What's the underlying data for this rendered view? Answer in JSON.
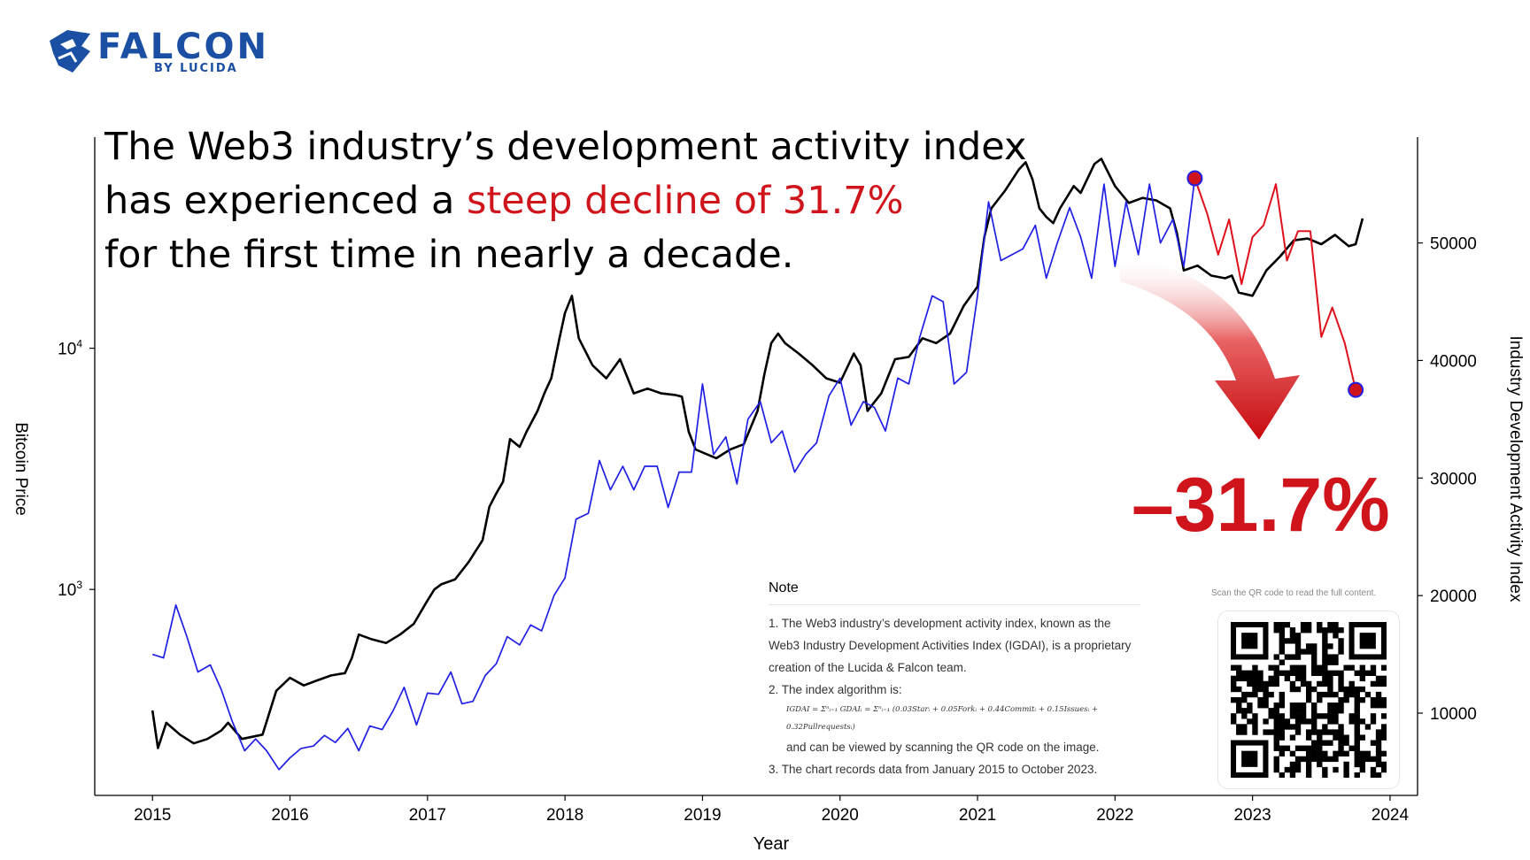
{
  "brand": {
    "name": "FALCON",
    "sub": "BY LUCIDA"
  },
  "headline": {
    "line1": "The Web3 industry’s development activity index",
    "line2_pre": "has experienced a ",
    "line2_red": "steep decline of 31.7%",
    "line3": "for the first time in nearly a decade."
  },
  "decline_label": "–31.7%",
  "note": {
    "title": "Note",
    "item1": "1. The Web3 industry’s development activity index, known as the Web3 Industry Development Activities Index (IGDAI), is a proprietary creation of the Lucida & Falcon team.",
    "item2": "2. The index algorithm is:",
    "formula": "IGDAI = Σⁿᵢ₌₁ GDAIᵢ = Σⁿᵢ₌₁ (0.03Starᵢ + 0.05Forkᵢ + 0.44Commitᵢ + 0.15Issuesᵢ + 0.32Pullrequestsᵢ)",
    "item2b": "and can be viewed by scanning the QR code on the image.",
    "item3": "3. The chart records data from January 2015 to October 2023."
  },
  "qr_caption": "Scan the QR code to read the full content.",
  "colors": {
    "price": "#000000",
    "index": "#1f1fe6",
    "decline": "#e0101c",
    "accent": "#d0141b",
    "brand": "#1a4fa3"
  },
  "chart_data": {
    "type": "line",
    "xlabel": "Year",
    "ylabel_left": "Bitcoin Price",
    "ylabel_right": "Industry Development Activity Index",
    "x_ticks": [
      2015,
      2016,
      2017,
      2018,
      2019,
      2020,
      2021,
      2022,
      2023,
      2024
    ],
    "xlim": [
      2014.58,
      2024.2
    ],
    "y_left_scale": "log",
    "y_left_ticks": [
      "10^3",
      "10^4"
    ],
    "ylim_left": [
      140,
      75000
    ],
    "y_right_ticks": [
      10000,
      20000,
      30000,
      40000,
      50000
    ],
    "ylim_right": [
      3000,
      59000
    ],
    "grid": false,
    "series": [
      {
        "name": "Bitcoin Price",
        "axis": "left",
        "x": [
          2015.0,
          2015.04,
          2015.1,
          2015.2,
          2015.3,
          2015.4,
          2015.5,
          2015.55,
          2015.65,
          2015.8,
          2015.9,
          2016.0,
          2016.1,
          2016.2,
          2016.3,
          2016.4,
          2016.45,
          2016.5,
          2016.6,
          2016.7,
          2016.8,
          2016.9,
          2017.0,
          2017.05,
          2017.1,
          2017.2,
          2017.3,
          2017.4,
          2017.45,
          2017.5,
          2017.55,
          2017.6,
          2017.67,
          2017.72,
          2017.8,
          2017.85,
          2017.9,
          2017.96,
          2018.0,
          2018.05,
          2018.1,
          2018.2,
          2018.3,
          2018.4,
          2018.5,
          2018.6,
          2018.7,
          2018.8,
          2018.85,
          2018.9,
          2018.95,
          2019.0,
          2019.1,
          2019.2,
          2019.3,
          2019.4,
          2019.45,
          2019.5,
          2019.55,
          2019.6,
          2019.7,
          2019.8,
          2019.9,
          2020.0,
          2020.1,
          2020.15,
          2020.2,
          2020.3,
          2020.4,
          2020.5,
          2020.6,
          2020.7,
          2020.8,
          2020.9,
          2021.0,
          2021.05,
          2021.1,
          2021.2,
          2021.3,
          2021.35,
          2021.4,
          2021.45,
          2021.5,
          2021.55,
          2021.6,
          2021.7,
          2021.75,
          2021.85,
          2021.9,
          2022.0,
          2022.1,
          2022.2,
          2022.3,
          2022.4,
          2022.45,
          2022.5,
          2022.6,
          2022.7,
          2022.8,
          2022.85,
          2022.9,
          2023.0,
          2023.1,
          2023.2,
          2023.3,
          2023.4,
          2023.5,
          2023.6,
          2023.7,
          2023.75,
          2023.8
        ],
        "y": [
          315,
          220,
          280,
          250,
          230,
          240,
          260,
          280,
          240,
          250,
          380,
          430,
          400,
          420,
          440,
          450,
          520,
          650,
          620,
          600,
          650,
          720,
          900,
          1000,
          1050,
          1100,
          1300,
          1600,
          2200,
          2500,
          2800,
          4200,
          3900,
          4500,
          5500,
          6500,
          7500,
          11000,
          14000,
          16500,
          11000,
          8500,
          7500,
          9000,
          6500,
          6800,
          6500,
          6400,
          6300,
          4500,
          3800,
          3700,
          3500,
          3800,
          4000,
          5500,
          7800,
          10500,
          11500,
          10500,
          9500,
          8500,
          7500,
          7200,
          9500,
          8500,
          5500,
          6500,
          9000,
          9200,
          11000,
          10500,
          11500,
          15000,
          18000,
          29000,
          38000,
          45000,
          55000,
          59000,
          50000,
          38000,
          35000,
          33000,
          38000,
          47000,
          44000,
          58000,
          61000,
          47000,
          40000,
          42000,
          41000,
          38000,
          30000,
          21000,
          22000,
          20000,
          19500,
          20000,
          17000,
          16500,
          21000,
          24000,
          28000,
          28500,
          27000,
          29500,
          26500,
          27000,
          34500
        ]
      },
      {
        "name": "Industry Development Activity Index",
        "axis": "right",
        "x": [
          2015.0,
          2015.08,
          2015.17,
          2015.25,
          2015.33,
          2015.42,
          2015.5,
          2015.58,
          2015.67,
          2015.75,
          2015.83,
          2015.92,
          2016.0,
          2016.08,
          2016.17,
          2016.25,
          2016.33,
          2016.42,
          2016.5,
          2016.58,
          2016.67,
          2016.75,
          2016.83,
          2016.92,
          2017.0,
          2017.08,
          2017.17,
          2017.25,
          2017.33,
          2017.42,
          2017.5,
          2017.58,
          2017.67,
          2017.75,
          2017.83,
          2017.92,
          2018.0,
          2018.08,
          2018.17,
          2018.25,
          2018.33,
          2018.42,
          2018.5,
          2018.58,
          2018.67,
          2018.75,
          2018.83,
          2018.92,
          2019.0,
          2019.08,
          2019.17,
          2019.25,
          2019.33,
          2019.42,
          2019.5,
          2019.58,
          2019.67,
          2019.75,
          2019.83,
          2019.92,
          2020.0,
          2020.08,
          2020.17,
          2020.25,
          2020.33,
          2020.42,
          2020.5,
          2020.58,
          2020.67,
          2020.75,
          2020.83,
          2020.92,
          2021.0,
          2021.08,
          2021.17,
          2021.25,
          2021.33,
          2021.42,
          2021.5,
          2021.58,
          2021.67,
          2021.75,
          2021.83,
          2021.92,
          2022.0,
          2022.08,
          2022.17,
          2022.25,
          2022.33,
          2022.42,
          2022.5,
          2022.58
        ],
        "y": [
          15000,
          14700,
          19200,
          16500,
          13500,
          14100,
          12000,
          9300,
          6800,
          7800,
          6800,
          5200,
          6200,
          7000,
          7200,
          8100,
          7500,
          8700,
          6800,
          8900,
          8600,
          10200,
          12200,
          9000,
          11700,
          11600,
          13500,
          10800,
          11000,
          13200,
          14200,
          16500,
          15800,
          17500,
          17000,
          20000,
          21500,
          26500,
          27000,
          31500,
          29000,
          31000,
          29000,
          31000,
          31000,
          27500,
          30500,
          30500,
          38000,
          32000,
          33500,
          29500,
          35000,
          36500,
          33000,
          34000,
          30500,
          32000,
          33000,
          37000,
          38500,
          34500,
          36500,
          36000,
          34000,
          38500,
          38000,
          42000,
          45500,
          45000,
          38000,
          39000,
          45500,
          53500,
          48500,
          49000,
          49500,
          51500,
          47000,
          50000,
          53000,
          50500,
          47000,
          55000,
          48000,
          53500,
          49000,
          55000,
          50000,
          52000,
          48000,
          55500
        ]
      },
      {
        "name": "Decline",
        "axis": "right",
        "x": [
          2022.58,
          2022.67,
          2022.75,
          2022.83,
          2022.92,
          2023.0,
          2023.08,
          2023.17,
          2023.25,
          2023.33,
          2023.42,
          2023.5,
          2023.58,
          2023.67,
          2023.75
        ],
        "y": [
          55500,
          52500,
          49000,
          52000,
          46500,
          50500,
          51500,
          55000,
          48500,
          51000,
          51000,
          42000,
          44500,
          41500,
          37500
        ]
      }
    ]
  }
}
